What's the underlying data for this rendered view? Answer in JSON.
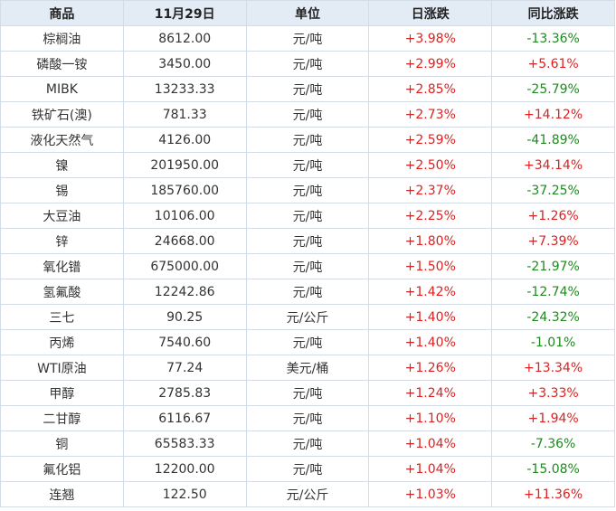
{
  "table": {
    "header": [
      "商品",
      "11月29日",
      "单位",
      "日涨跌",
      "同比涨跌"
    ],
    "rows": [
      [
        "棕榈油",
        "8612.00",
        "元/吨",
        "+3.98%",
        "-13.36%"
      ],
      [
        "磷酸一铵",
        "3450.00",
        "元/吨",
        "+2.99%",
        "+5.61%"
      ],
      [
        "MIBK",
        "13233.33",
        "元/吨",
        "+2.85%",
        "-25.79%"
      ],
      [
        "铁矿石(澳)",
        "781.33",
        "元/吨",
        "+2.73%",
        "+14.12%"
      ],
      [
        "液化天然气",
        "4126.00",
        "元/吨",
        "+2.59%",
        "-41.89%"
      ],
      [
        "镍",
        "201950.00",
        "元/吨",
        "+2.50%",
        "+34.14%"
      ],
      [
        "锡",
        "185760.00",
        "元/吨",
        "+2.37%",
        "-37.25%"
      ],
      [
        "大豆油",
        "10106.00",
        "元/吨",
        "+2.25%",
        "+1.26%"
      ],
      [
        "锌",
        "24668.00",
        "元/吨",
        "+1.80%",
        "+7.39%"
      ],
      [
        "氧化镨",
        "675000.00",
        "元/吨",
        "+1.50%",
        "-21.97%"
      ],
      [
        "氢氟酸",
        "12242.86",
        "元/吨",
        "+1.42%",
        "-12.74%"
      ],
      [
        "三七",
        "90.25",
        "元/公斤",
        "+1.40%",
        "-24.32%"
      ],
      [
        "丙烯",
        "7540.60",
        "元/吨",
        "+1.40%",
        "-1.01%"
      ],
      [
        "WTI原油",
        "77.24",
        "美元/桶",
        "+1.26%",
        "+13.34%"
      ],
      [
        "甲醇",
        "2785.83",
        "元/吨",
        "+1.24%",
        "+3.33%"
      ],
      [
        "二甘醇",
        "6116.67",
        "元/吨",
        "+1.10%",
        "+1.94%"
      ],
      [
        "铜",
        "65583.33",
        "元/吨",
        "+1.04%",
        "-7.36%"
      ],
      [
        "氟化铝",
        "12200.00",
        "元/吨",
        "+1.04%",
        "-15.08%"
      ],
      [
        "连翘",
        "122.50",
        "元/公斤",
        "+1.03%",
        "+11.36%"
      ]
    ]
  }
}
